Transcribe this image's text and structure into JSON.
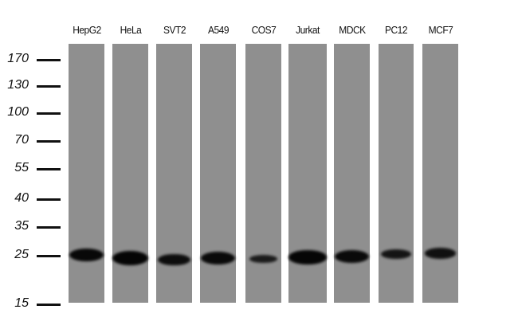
{
  "lanes": [
    {
      "label": "HepG2",
      "band_intensity": 0.9
    },
    {
      "label": "HeLa",
      "band_intensity": 1.0
    },
    {
      "label": "SVT2",
      "band_intensity": 0.75
    },
    {
      "label": "A549",
      "band_intensity": 0.85
    },
    {
      "label": "COS7",
      "band_intensity": 0.35
    },
    {
      "label": "Jurkat",
      "band_intensity": 0.95
    },
    {
      "label": "MDCK",
      "band_intensity": 0.85
    },
    {
      "label": "PC12",
      "band_intensity": 0.55
    },
    {
      "label": "MCF7",
      "band_intensity": 0.65
    }
  ],
  "markers": [
    "170",
    "130",
    "100",
    "70",
    "55",
    "40",
    "35",
    "25",
    "15"
  ],
  "colors": {
    "lane": "#8f8f8f",
    "band": "#050505",
    "text": "#111111"
  }
}
